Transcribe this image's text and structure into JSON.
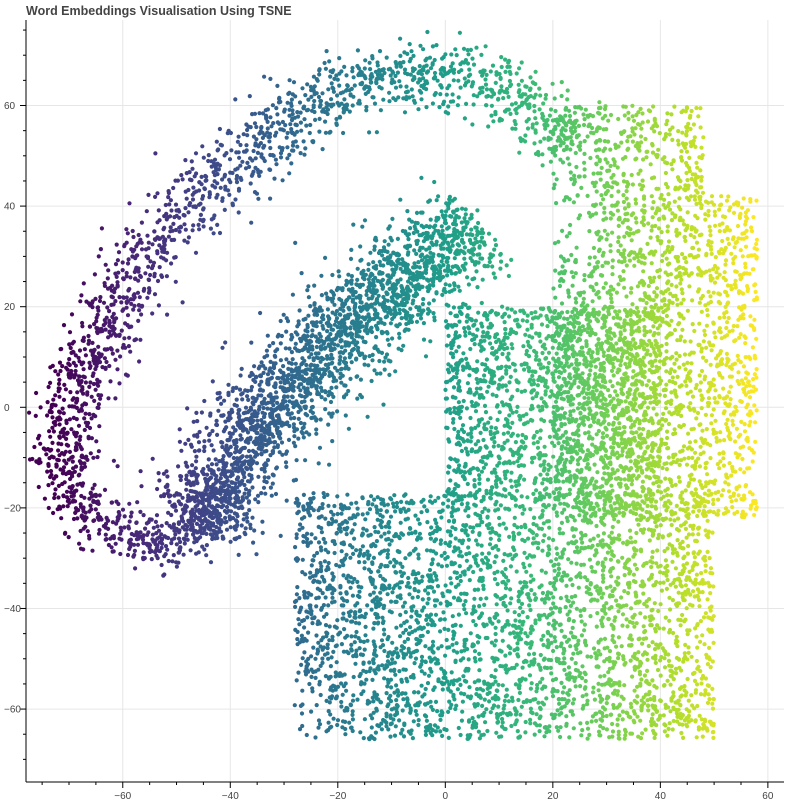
{
  "chart_data": {
    "type": "scatter",
    "title": "Word Embeddings Visualisation Using TSNE",
    "xlabel": "",
    "ylabel": "",
    "xlim": [
      -78,
      63
    ],
    "ylim": [
      -74.5,
      77
    ],
    "x_ticks": [
      -60,
      -40,
      -20,
      0,
      20,
      40,
      60
    ],
    "y_ticks": [
      -60,
      -40,
      -20,
      0,
      20,
      40,
      60
    ],
    "grid": true,
    "legend": "none",
    "color_map": "viridis (coloured by x position)",
    "colors": {
      "viridis_start": "#440154",
      "viridis_mid": "#21918c",
      "viridis_end": "#fde725"
    },
    "clusters": [
      {
        "name": "outer-arc",
        "path": [
          [
            -71,
            -12
          ],
          [
            -70,
            0
          ],
          [
            -67,
            8
          ],
          [
            -63,
            16
          ],
          [
            -59,
            25
          ],
          [
            -54,
            33
          ],
          [
            -48,
            40
          ],
          [
            -42,
            46
          ],
          [
            -36,
            51
          ],
          [
            -30,
            56
          ],
          [
            -23,
            61
          ],
          [
            -16,
            64
          ],
          [
            -8,
            66
          ],
          [
            0,
            67
          ],
          [
            7,
            65
          ],
          [
            14,
            61
          ],
          [
            20,
            57
          ],
          [
            24,
            52
          ]
        ],
        "spread": 3.3,
        "count": 1500
      },
      {
        "name": "lower-hook",
        "path": [
          [
            -71,
            -12
          ],
          [
            -68,
            -20
          ],
          [
            -62,
            -25
          ],
          [
            -55,
            -27
          ],
          [
            -48,
            -26
          ],
          [
            -43,
            -22
          ],
          [
            -40,
            -16
          ]
        ],
        "spread": 2.4,
        "count": 450
      },
      {
        "name": "inner-band",
        "path": [
          [
            -47,
            -23
          ],
          [
            -42,
            -16
          ],
          [
            -37,
            -8
          ],
          [
            -32,
            0
          ],
          [
            -26,
            8
          ],
          [
            -20,
            14
          ],
          [
            -14,
            20
          ],
          [
            -8,
            25
          ],
          [
            -3,
            29
          ],
          [
            2,
            33
          ],
          [
            6,
            36
          ]
        ],
        "spread": 4.6,
        "count": 2300
      },
      {
        "name": "right-mass",
        "bounds": [
          [
            20,
            -22
          ],
          [
            58,
            60
          ]
        ],
        "count": 2400
      },
      {
        "name": "bottom-mass",
        "bounds": [
          [
            -28,
            -66
          ],
          [
            50,
            -17
          ]
        ],
        "count": 3200
      },
      {
        "name": "middle-fill",
        "bounds": [
          [
            0,
            -18
          ],
          [
            40,
            20
          ]
        ],
        "count": 1400
      }
    ]
  }
}
